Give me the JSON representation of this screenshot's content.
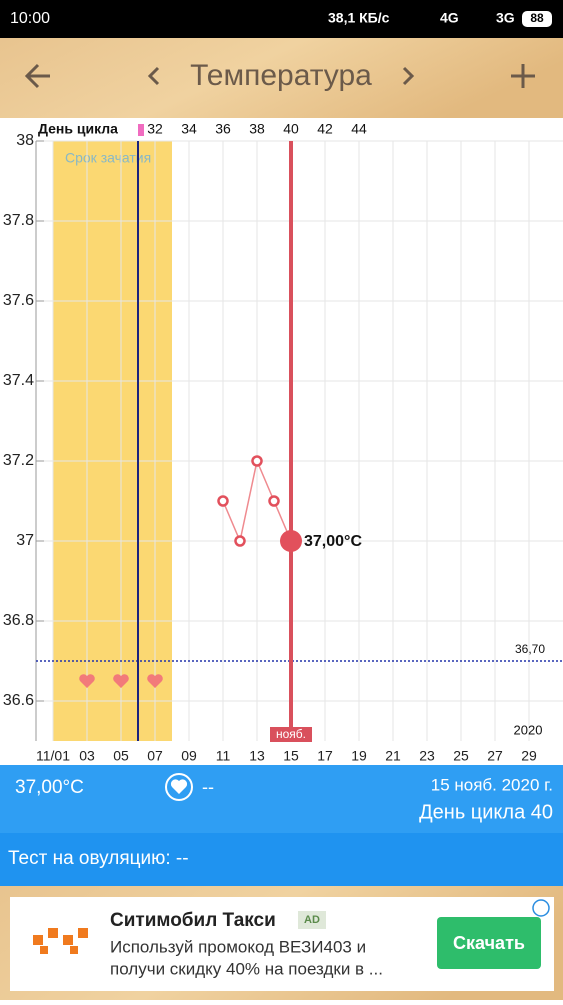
{
  "status_bar": {
    "time": "10:00",
    "speed": "38,1 КБ/с",
    "network1": "4G",
    "network2": "3G",
    "battery": "88"
  },
  "header": {
    "title": "Температура"
  },
  "chart_data": {
    "type": "line",
    "x": [
      11,
      12,
      13,
      14,
      15
    ],
    "values": [
      37.1,
      37.0,
      37.2,
      37.1,
      37.0
    ],
    "color": "#ef8a8f",
    "current": {
      "x": 15,
      "value": 37.0,
      "label": "37,00°C"
    },
    "xlim": [
      0,
      31
    ],
    "ylim": [
      36.5,
      38
    ],
    "yticks": [
      36.6,
      36.8,
      37,
      37.2,
      37.4,
      37.6,
      37.8,
      38
    ],
    "xticks": [
      {
        "value": 1,
        "label": "11/01"
      },
      {
        "value": 3,
        "label": "03"
      },
      {
        "value": 5,
        "label": "05"
      },
      {
        "value": 7,
        "label": "07"
      },
      {
        "value": 9,
        "label": "09"
      },
      {
        "value": 11,
        "label": "11"
      },
      {
        "value": 13,
        "label": "13"
      },
      {
        "value": 15,
        "label": "15"
      },
      {
        "value": 17,
        "label": "17"
      },
      {
        "value": 19,
        "label": "19"
      },
      {
        "value": 21,
        "label": "21"
      },
      {
        "value": 23,
        "label": "23"
      },
      {
        "value": 25,
        "label": "25"
      },
      {
        "value": 27,
        "label": "27"
      },
      {
        "value": 29,
        "label": "29"
      }
    ],
    "grid": true,
    "cycle_day_label": "День цикла",
    "cycle_day_ticks": [
      {
        "value": 7,
        "label": "32"
      },
      {
        "value": 9,
        "label": "34"
      },
      {
        "value": 11,
        "label": "36"
      },
      {
        "value": 13,
        "label": "38"
      },
      {
        "value": 15,
        "label": "40"
      },
      {
        "value": 17,
        "label": "42"
      },
      {
        "value": 19,
        "label": "44"
      }
    ],
    "fertile_window": {
      "label": "Срок зачатия",
      "start": 1,
      "end": 8
    },
    "ovulation_day": 6,
    "today": {
      "x": 15,
      "label": "нояб."
    },
    "coverline": {
      "value": 36.7,
      "label": "36,70"
    },
    "year_label": "2020",
    "hearts": [
      3,
      5,
      7
    ]
  },
  "summary": {
    "temperature": "37,00°C",
    "intercourse": "--",
    "date": "15 нояб. 2020 г.",
    "cycle_day": "День цикла 40"
  },
  "ovulation_test": {
    "text": "Тест на овуляцию: --"
  },
  "ad": {
    "title": "Ситимобил Такси",
    "badge": "AD",
    "text_line1": "Используй промокод ВЕЗИ403 и",
    "text_line2": "получи скидку 40% на поездки в ...",
    "button": "Скачать"
  }
}
